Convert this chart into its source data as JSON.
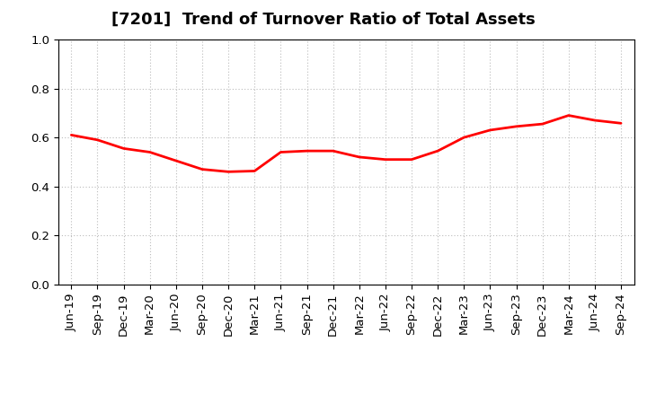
{
  "title": "[7201]  Trend of Turnover Ratio of Total Assets",
  "x_labels": [
    "Jun-19",
    "Sep-19",
    "Dec-19",
    "Mar-20",
    "Jun-20",
    "Sep-20",
    "Dec-20",
    "Mar-21",
    "Jun-21",
    "Sep-21",
    "Dec-21",
    "Mar-22",
    "Jun-22",
    "Sep-22",
    "Dec-22",
    "Mar-23",
    "Jun-23",
    "Sep-23",
    "Dec-23",
    "Mar-24",
    "Jun-24",
    "Sep-24"
  ],
  "values": [
    0.61,
    0.59,
    0.555,
    0.54,
    0.505,
    0.47,
    0.46,
    0.463,
    0.54,
    0.545,
    0.545,
    0.52,
    0.51,
    0.51,
    0.545,
    0.6,
    0.63,
    0.645,
    0.655,
    0.69,
    0.67,
    0.658
  ],
  "line_color": "#ff0000",
  "line_width": 2.0,
  "ylim": [
    0.0,
    1.0
  ],
  "yticks": [
    0.0,
    0.2,
    0.4,
    0.6,
    0.8,
    1.0
  ],
  "grid_color": "#bbbbbb",
  "background_color": "#ffffff",
  "title_fontsize": 13,
  "tick_fontsize": 9.5
}
